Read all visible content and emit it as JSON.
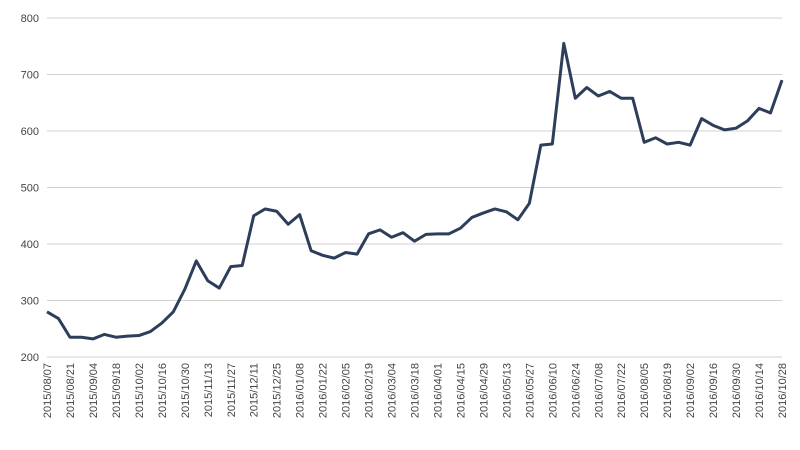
{
  "chart_data": {
    "type": "line",
    "categories": [
      "2015/08/07",
      null,
      "2015/08/21",
      null,
      "2015/09/04",
      null,
      "2015/09/18",
      null,
      "2015/10/02",
      null,
      "2015/10/16",
      null,
      "2015/10/30",
      null,
      "2015/11/13",
      null,
      "2015/11/27",
      null,
      "2015/12/11",
      null,
      "2015/12/25",
      null,
      "2016/01/08",
      null,
      "2016/01/22",
      null,
      "2016/02/05",
      null,
      "2016/02/19",
      null,
      "2016/03/04",
      null,
      "2016/03/18",
      null,
      "2016/04/01",
      null,
      "2016/04/15",
      null,
      "2016/04/29",
      null,
      "2016/05/13",
      null,
      "2016/05/27",
      null,
      "2016/06/10",
      null,
      "2016/06/24",
      null,
      "2016/07/08",
      null,
      "2016/07/22",
      null,
      "2016/08/05",
      null,
      "2016/08/19",
      null,
      "2016/09/02",
      null,
      "2016/09/16",
      null,
      "2016/09/30",
      null,
      "2016/10/14",
      null,
      "2016/10/28"
    ],
    "series": [
      {
        "color": "#2d3e5a",
        "values": [
          280,
          268,
          235,
          235,
          232,
          240,
          235,
          237,
          238,
          245,
          260,
          280,
          320,
          370,
          335,
          322,
          360,
          362,
          450,
          462,
          458,
          435,
          452,
          388,
          380,
          375,
          385,
          382,
          418,
          425,
          412,
          420,
          405,
          417,
          418,
          418,
          428,
          447,
          455,
          462,
          457,
          443,
          472,
          575,
          577,
          755,
          658,
          677,
          662,
          670,
          658,
          658,
          580,
          588,
          577,
          580,
          575,
          622,
          610,
          602,
          605,
          618,
          640,
          632,
          690
        ]
      }
    ],
    "ylim": [
      200,
      800
    ],
    "yticks": [
      200,
      300,
      400,
      500,
      600,
      700,
      800
    ],
    "grid": true
  }
}
